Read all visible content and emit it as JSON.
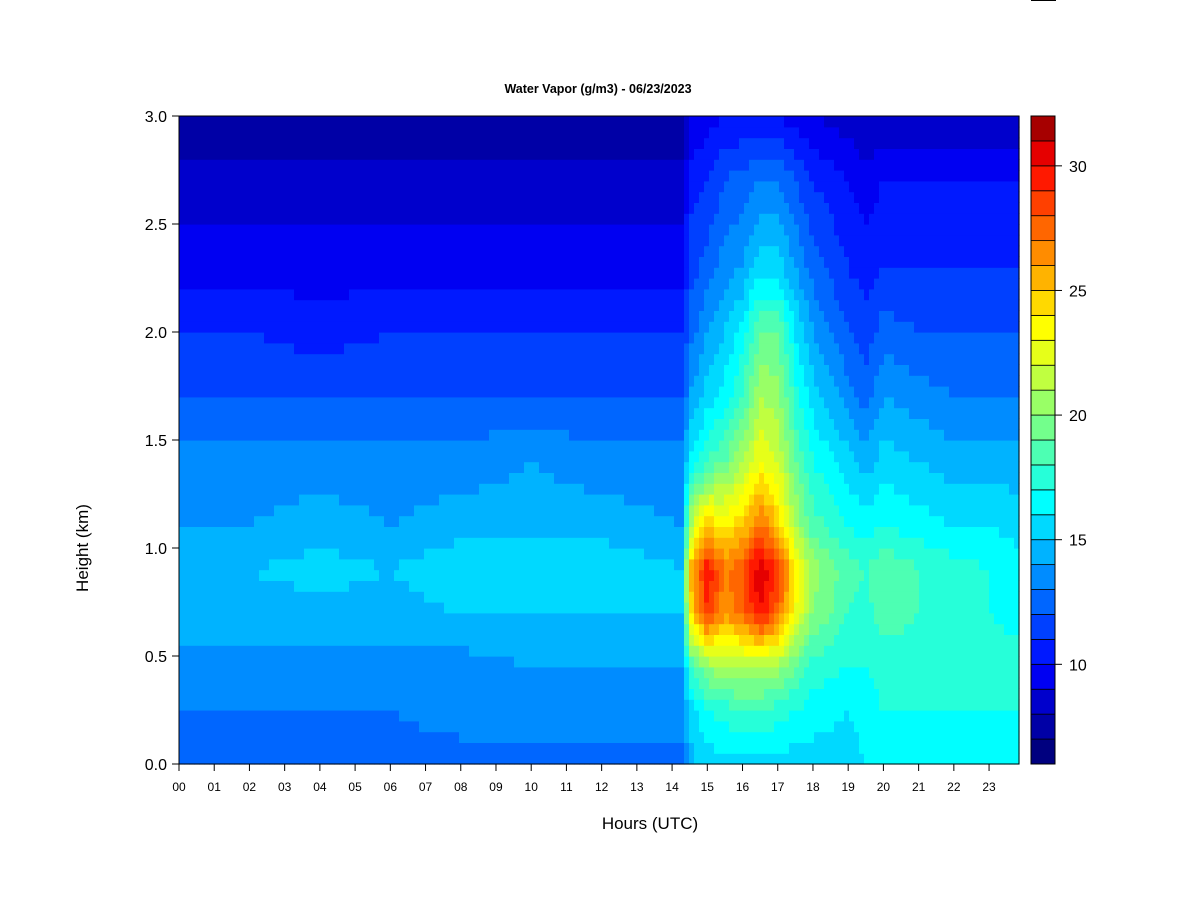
{
  "chart_data": {
    "type": "heatmap",
    "title": "Water Vapor (g/m3) - 06/23/2023",
    "xlabel": "Hours (UTC)",
    "ylabel": "Height (km)",
    "x_ticks": [
      "00",
      "01",
      "02",
      "03",
      "04",
      "05",
      "06",
      "07",
      "08",
      "09",
      "10",
      "11",
      "12",
      "13",
      "14",
      "15",
      "16",
      "17",
      "18",
      "19",
      "20",
      "21",
      "22",
      "23"
    ],
    "y_ticks": [
      "0.0",
      "0.5",
      "1.0",
      "1.5",
      "2.0",
      "2.5",
      "3.0"
    ],
    "xlim": [
      0,
      23.85
    ],
    "ylim": [
      0,
      3.0
    ],
    "colorbar": {
      "min": 6,
      "max": 32,
      "ticks": [
        "10",
        "15",
        "20",
        "25",
        "30"
      ],
      "levels": 26,
      "colors": [
        "#00007f",
        "#0000a6",
        "#0000cc",
        "#0000f2",
        "#0019ff",
        "#0040ff",
        "#0066ff",
        "#008cff",
        "#00b3ff",
        "#00d9ff",
        "#00ffff",
        "#26ffd9",
        "#4dffb3",
        "#73ff8c",
        "#99ff66",
        "#c0ff40",
        "#e6ff19",
        "#ffff00",
        "#ffd900",
        "#ffb300",
        "#ff8c00",
        "#ff6600",
        "#ff4000",
        "#ff1900",
        "#e50000",
        "#a60000"
      ]
    },
    "height_km": [
      0.0,
      0.25,
      0.45,
      0.7,
      0.9,
      1.1,
      1.4,
      1.7,
      2.0,
      2.3,
      2.7,
      3.0
    ],
    "hours": [
      0,
      2,
      4,
      6,
      8,
      10,
      12,
      14.3,
      14.5,
      15.0,
      15.5,
      16.0,
      16.5,
      17.0,
      17.5,
      18.0,
      19.0,
      19.5,
      20.0,
      21.0,
      22.0,
      23.0,
      23.85
    ],
    "vapor_g_m3": [
      [
        12.5,
        12.5,
        12.0,
        12.5,
        12.5,
        12.5,
        12.5,
        12.5,
        14.5,
        15.5,
        15.5,
        15.5,
        15.5,
        15.5,
        15.5,
        15.5,
        15.5,
        16.0,
        16.0,
        16.5,
        16.5,
        16.5,
        16.5
      ],
      [
        13.0,
        13.0,
        13.0,
        13.0,
        13.5,
        13.5,
        13.5,
        13.5,
        15.5,
        17.0,
        17.5,
        18.0,
        18.0,
        17.5,
        17.0,
        16.5,
        16.0,
        16.5,
        17.0,
        17.0,
        17.0,
        17.0,
        17.0
      ],
      [
        13.5,
        13.5,
        13.5,
        13.5,
        13.5,
        14.0,
        14.0,
        14.0,
        18.0,
        20.0,
        21.0,
        21.0,
        21.0,
        20.5,
        19.0,
        17.5,
        17.0,
        17.0,
        17.5,
        17.5,
        17.5,
        17.5,
        17.5
      ],
      [
        14.5,
        14.5,
        14.5,
        14.5,
        15.0,
        15.0,
        15.0,
        15.0,
        24.0,
        29.0,
        26.0,
        27.5,
        30.0,
        27.5,
        23.0,
        20.0,
        18.0,
        17.5,
        18.5,
        18.0,
        17.5,
        17.0,
        16.5
      ],
      [
        15.0,
        15.0,
        15.5,
        15.0,
        16.0,
        16.0,
        16.0,
        15.0,
        25.0,
        30.0,
        27.0,
        28.0,
        31.0,
        29.0,
        24.0,
        20.5,
        18.5,
        18.0,
        19.0,
        18.0,
        17.5,
        17.0,
        16.5
      ],
      [
        14.0,
        14.0,
        14.5,
        14.0,
        14.5,
        14.5,
        14.5,
        14.0,
        21.0,
        25.0,
        24.0,
        25.0,
        27.5,
        25.0,
        21.0,
        18.5,
        17.0,
        16.5,
        17.0,
        16.5,
        16.0,
        16.0,
        15.5
      ],
      [
        13.5,
        13.5,
        13.5,
        13.5,
        13.5,
        14.0,
        13.5,
        13.5,
        16.0,
        18.0,
        19.0,
        21.0,
        23.0,
        22.0,
        19.0,
        17.0,
        15.5,
        14.5,
        15.5,
        15.0,
        14.5,
        14.5,
        14.5
      ],
      [
        12.0,
        12.0,
        12.0,
        12.0,
        12.0,
        12.0,
        12.0,
        12.0,
        14.0,
        15.5,
        16.5,
        18.0,
        21.0,
        20.5,
        17.5,
        15.5,
        13.5,
        12.5,
        14.0,
        13.5,
        13.0,
        13.0,
        13.0
      ],
      [
        11.0,
        11.0,
        10.5,
        11.0,
        11.0,
        11.0,
        11.0,
        11.0,
        12.5,
        14.0,
        15.0,
        16.5,
        19.0,
        19.0,
        16.0,
        14.0,
        12.0,
        11.5,
        12.5,
        12.0,
        12.0,
        12.0,
        12.0
      ],
      [
        9.5,
        9.5,
        9.5,
        9.5,
        9.5,
        9.5,
        9.5,
        9.5,
        11.5,
        12.5,
        13.5,
        14.0,
        15.5,
        15.5,
        14.0,
        12.5,
        11.0,
        10.5,
        11.0,
        11.0,
        11.0,
        11.0,
        11.0
      ],
      [
        8.5,
        8.5,
        8.5,
        8.5,
        8.5,
        8.5,
        8.5,
        8.5,
        10.5,
        11.0,
        12.0,
        12.5,
        13.0,
        13.0,
        12.0,
        11.0,
        10.0,
        9.5,
        10.0,
        10.0,
        10.0,
        10.0,
        10.0
      ],
      [
        7.0,
        7.0,
        7.0,
        7.0,
        7.0,
        7.0,
        7.0,
        7.0,
        9.0,
        9.5,
        10.0,
        10.0,
        10.0,
        10.0,
        9.5,
        9.0,
        8.5,
        8.0,
        8.0,
        8.0,
        8.0,
        8.0,
        8.0
      ]
    ],
    "grid": false
  }
}
